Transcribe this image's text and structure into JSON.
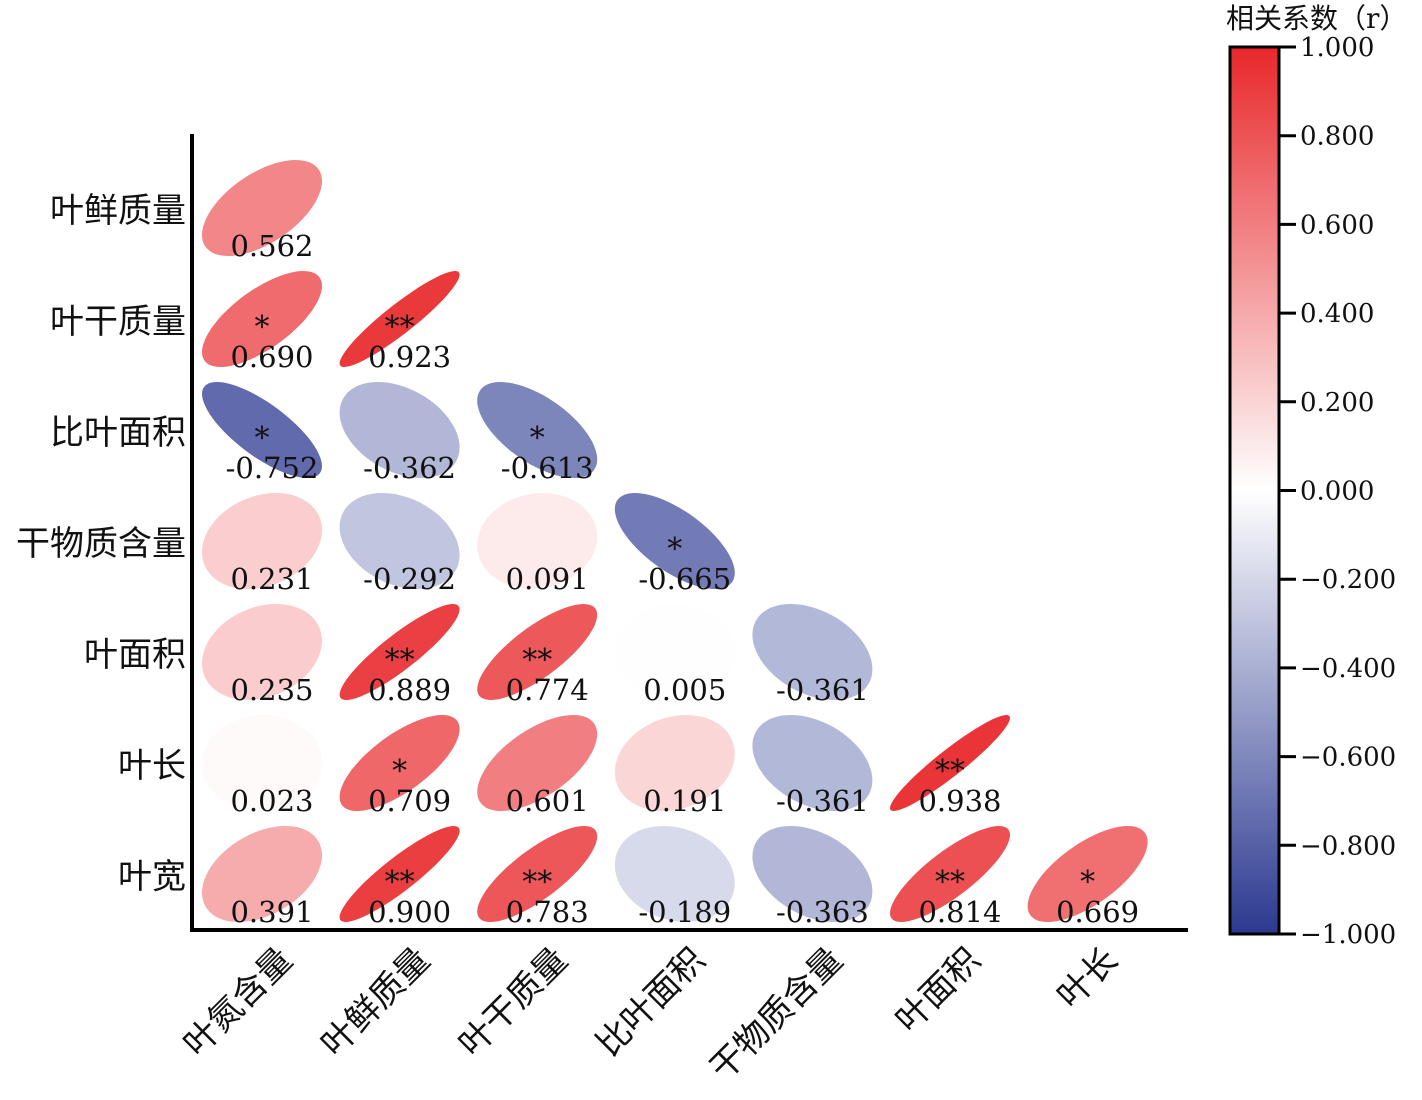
{
  "chart_data": {
    "type": "heatmap",
    "subtype": "correlation-ellipse-lower-triangle",
    "row_labels": [
      "叶鲜质量",
      "叶干质量",
      "比叶面积",
      "干物质含量",
      "叶面积",
      "叶长",
      "叶宽"
    ],
    "col_labels": [
      "叶氮含量",
      "叶鲜质量",
      "叶干质量",
      "比叶面积",
      "干物质含量",
      "叶面积",
      "叶长"
    ],
    "cells": [
      [
        {
          "r": 0.562,
          "label": "0.562",
          "sig": ""
        }
      ],
      [
        {
          "r": 0.69,
          "label": "0.690",
          "sig": "*"
        },
        {
          "r": 0.923,
          "label": "0.923",
          "sig": "**"
        }
      ],
      [
        {
          "r": -0.752,
          "label": "-0.752",
          "sig": "*"
        },
        {
          "r": -0.362,
          "label": "-0.362",
          "sig": ""
        },
        {
          "r": -0.613,
          "label": "-0.613",
          "sig": "*"
        }
      ],
      [
        {
          "r": 0.231,
          "label": "0.231",
          "sig": ""
        },
        {
          "r": -0.292,
          "label": "-0.292",
          "sig": ""
        },
        {
          "r": 0.091,
          "label": "0.091",
          "sig": ""
        },
        {
          "r": -0.665,
          "label": "-0.665",
          "sig": "*"
        }
      ],
      [
        {
          "r": 0.235,
          "label": "0.235",
          "sig": ""
        },
        {
          "r": 0.889,
          "label": "0.889",
          "sig": "**"
        },
        {
          "r": 0.774,
          "label": "0.774",
          "sig": "**"
        },
        {
          "r": 0.005,
          "label": "0.005",
          "sig": ""
        },
        {
          "r": -0.361,
          "label": "-0.361",
          "sig": ""
        }
      ],
      [
        {
          "r": 0.023,
          "label": "0.023",
          "sig": ""
        },
        {
          "r": 0.709,
          "label": "0.709",
          "sig": "*"
        },
        {
          "r": 0.601,
          "label": "0.601",
          "sig": ""
        },
        {
          "r": 0.191,
          "label": "0.191",
          "sig": ""
        },
        {
          "r": -0.361,
          "label": "-0.361",
          "sig": ""
        },
        {
          "r": 0.938,
          "label": "0.938",
          "sig": "**"
        }
      ],
      [
        {
          "r": 0.391,
          "label": "0.391",
          "sig": ""
        },
        {
          "r": 0.9,
          "label": "0.900",
          "sig": "**"
        },
        {
          "r": 0.783,
          "label": "0.783",
          "sig": "**"
        },
        {
          "r": -0.189,
          "label": "-0.189",
          "sig": ""
        },
        {
          "r": -0.363,
          "label": "-0.363",
          "sig": ""
        },
        {
          "r": 0.814,
          "label": "0.814",
          "sig": "**"
        },
        {
          "r": 0.669,
          "label": "0.669",
          "sig": "*"
        }
      ]
    ],
    "colorbar": {
      "title": "相关系数（r）",
      "range": [
        -1,
        1
      ],
      "ticks": [
        1.0,
        0.8,
        0.6,
        0.4,
        0.2,
        0.0,
        -0.2,
        -0.4,
        -0.6,
        -0.8,
        -1.0
      ],
      "tick_labels": [
        "1.000",
        "0.800",
        "0.600",
        "0.400",
        "0.200",
        "0.000",
        "−0.200",
        "−0.400",
        "−0.600",
        "−0.800",
        "−1.000"
      ]
    },
    "colors": {
      "positive": "#e8282b",
      "negative": "#2b3990",
      "zero": "#ffffff"
    }
  }
}
